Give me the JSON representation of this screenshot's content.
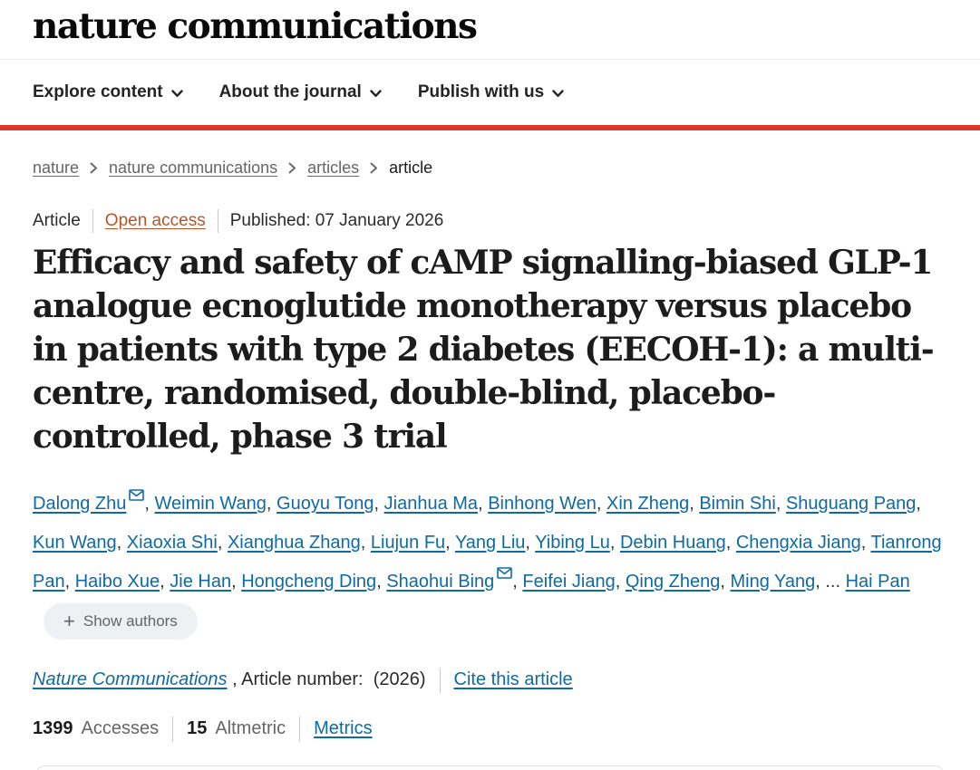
{
  "header": {
    "logo": "nature communications",
    "nav": [
      {
        "label": "Explore content"
      },
      {
        "label": "About the journal"
      },
      {
        "label": "Publish with us"
      }
    ]
  },
  "breadcrumb": {
    "items": [
      {
        "label": "nature"
      },
      {
        "label": "nature communications"
      },
      {
        "label": "articles"
      },
      {
        "label": "article"
      }
    ]
  },
  "article": {
    "type_label": "Article",
    "access_label": "Open access",
    "published_label": "Published: 07 January 2026",
    "title": "Efficacy and safety of cAMP signalling-biased GLP-1 analogue ecnoglutide monotherapy versus placebo in patients with type 2 diabetes (EECOH-1): a multi-centre, randomised, double-blind, placebo-controlled, phase 3 trial",
    "authors": [
      {
        "name": "Dalong Zhu",
        "email_icon": true
      },
      {
        "name": "Weimin Wang",
        "email_icon": false
      },
      {
        "name": "Guoyu Tong",
        "email_icon": false
      },
      {
        "name": "Jianhua Ma",
        "email_icon": false
      },
      {
        "name": "Binhong Wen",
        "email_icon": false
      },
      {
        "name": "Xin Zheng",
        "email_icon": false
      },
      {
        "name": "Bimin Shi",
        "email_icon": false
      },
      {
        "name": "Shuguang Pang",
        "email_icon": false
      },
      {
        "name": "Kun Wang",
        "email_icon": false
      },
      {
        "name": "Xiaoxia Shi",
        "email_icon": false
      },
      {
        "name": "Xianghua Zhang",
        "email_icon": false
      },
      {
        "name": "Liujun Fu",
        "email_icon": false
      },
      {
        "name": "Yang Liu",
        "email_icon": false
      },
      {
        "name": "Yibing Lu",
        "email_icon": false
      },
      {
        "name": "Debin Huang",
        "email_icon": false
      },
      {
        "name": "Chengxia Jiang",
        "email_icon": false
      },
      {
        "name": "Tianrong Pan",
        "email_icon": false
      },
      {
        "name": "Haibo Xue",
        "email_icon": false
      },
      {
        "name": "Jie Han",
        "email_icon": false
      },
      {
        "name": "Hongcheng Ding",
        "email_icon": false
      },
      {
        "name": "Shaohui Bing",
        "email_icon": true
      },
      {
        "name": "Feifei Jiang",
        "email_icon": false
      },
      {
        "name": "Qing Zheng",
        "email_icon": false
      },
      {
        "name": "Ming Yang",
        "email_icon": false
      }
    ],
    "authors_ellipsis": "...",
    "final_author": "Hai Pan",
    "show_authors_label": "Show authors",
    "journal_name": "Nature Communications",
    "article_number_text": " , Article number:  (2026)",
    "cite_label": "Cite this article",
    "metrics": {
      "accesses_value": "1399",
      "accesses_label": "Accesses",
      "altmetric_value": "15",
      "altmetric_label": "Altmetric",
      "metrics_label": "Metrics"
    }
  },
  "colors": {
    "link": "#0f6aa4",
    "oa": "#b95426",
    "red": "#db372b",
    "gray": "#666666",
    "pill": "#eef1f3"
  }
}
